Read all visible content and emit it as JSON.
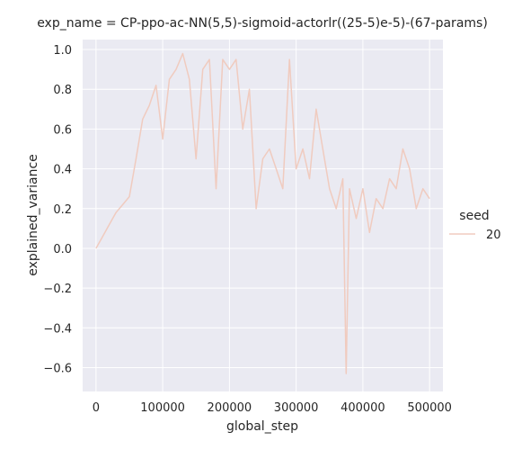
{
  "chart_data": {
    "type": "line",
    "title": "exp_name = CP-ppo-ac-NN(5,5)-sigmoid-actorlr((25-5)e-5)-(67-params)",
    "xlabel": "global_step",
    "ylabel": "explained_variance",
    "xlim": [
      -20000,
      520000
    ],
    "ylim": [
      -0.72,
      1.05
    ],
    "xticks": [
      0,
      100000,
      200000,
      300000,
      400000,
      500000
    ],
    "yticks": [
      -0.6,
      -0.4,
      -0.2,
      0.0,
      0.2,
      0.4,
      0.6,
      0.8,
      1.0
    ],
    "xtick_labels": [
      "0",
      "100000",
      "200000",
      "300000",
      "400000",
      "500000"
    ],
    "ytick_labels": [
      "−0.6",
      "−0.4",
      "−0.2",
      "0.0",
      "0.2",
      "0.4",
      "0.6",
      "0.8",
      "1.0"
    ],
    "grid": true,
    "legend": {
      "title": "seed",
      "placement": "right",
      "entries": [
        {
          "label": "20",
          "color": "#f0cbbf"
        }
      ]
    },
    "series": [
      {
        "name": "20",
        "color": "#f0cbbf",
        "x": [
          0,
          10000,
          20000,
          30000,
          40000,
          50000,
          60000,
          70000,
          80000,
          90000,
          100000,
          110000,
          120000,
          130000,
          140000,
          150000,
          160000,
          170000,
          180000,
          190000,
          200000,
          210000,
          220000,
          230000,
          240000,
          250000,
          260000,
          270000,
          280000,
          290000,
          300000,
          310000,
          320000,
          330000,
          340000,
          350000,
          360000,
          370000,
          375000,
          380000,
          390000,
          400000,
          410000,
          420000,
          430000,
          440000,
          450000,
          460000,
          470000,
          480000,
          490000,
          500000
        ],
        "y": [
          0.0,
          0.06,
          0.12,
          0.18,
          0.22,
          0.26,
          0.45,
          0.65,
          0.72,
          0.82,
          0.55,
          0.85,
          0.9,
          0.98,
          0.85,
          0.45,
          0.9,
          0.95,
          0.3,
          0.95,
          0.9,
          0.95,
          0.6,
          0.8,
          0.2,
          0.45,
          0.5,
          0.4,
          0.3,
          0.95,
          0.4,
          0.5,
          0.35,
          0.7,
          0.5,
          0.3,
          0.2,
          0.35,
          -0.63,
          0.3,
          0.15,
          0.3,
          0.08,
          0.25,
          0.2,
          0.35,
          0.3,
          0.5,
          0.4,
          0.2,
          0.3,
          0.25
        ]
      }
    ]
  }
}
